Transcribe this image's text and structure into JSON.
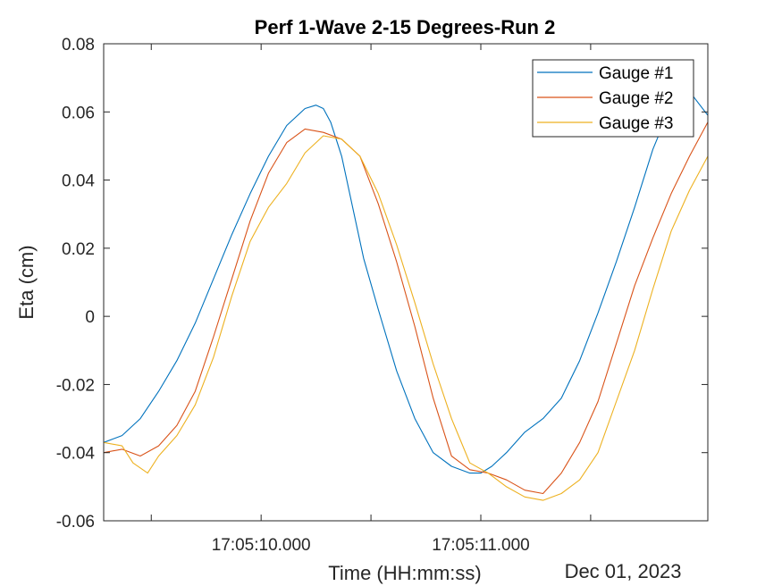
{
  "chart_data": {
    "type": "line",
    "title": "Perf 1-Wave 2-15 Degrees-Run 2",
    "xlabel": "Time (HH:mm:ss)",
    "ylabel": "Eta (cm)",
    "date_label": "Dec 01, 2023",
    "x_unit": "seconds after 17:05:09",
    "xlim": [
      0.3,
      1.95
    ],
    "ylim": [
      -0.06,
      0.08
    ],
    "x_ticks": [
      0.43,
      0.73,
      1.03,
      1.33,
      1.63
    ],
    "x_tick_labels": [
      "",
      "17:05:10.000",
      "",
      "17:05:11.000",
      ""
    ],
    "y_ticks": [
      -0.06,
      -0.04,
      -0.02,
      0,
      0.02,
      0.04,
      0.06,
      0.08
    ],
    "y_tick_labels": [
      "-0.06",
      "-0.04",
      "-0.02",
      "0",
      "0.02",
      "0.04",
      "0.06",
      "0.08"
    ],
    "grid": false,
    "legend_position": "top-right",
    "series": [
      {
        "name": "Gauge #1",
        "color": "#0072BD",
        "x": [
          0.3,
          0.35,
          0.4,
          0.45,
          0.5,
          0.55,
          0.6,
          0.65,
          0.7,
          0.75,
          0.8,
          0.85,
          0.88,
          0.9,
          0.92,
          0.95,
          0.98,
          1.01,
          1.05,
          1.1,
          1.15,
          1.2,
          1.25,
          1.3,
          1.33,
          1.36,
          1.4,
          1.45,
          1.5,
          1.55,
          1.6,
          1.65,
          1.7,
          1.75,
          1.8,
          1.85,
          1.9,
          1.95
        ],
        "y": [
          -0.037,
          -0.035,
          -0.03,
          -0.022,
          -0.013,
          -0.002,
          0.011,
          0.024,
          0.036,
          0.047,
          0.056,
          0.061,
          0.062,
          0.061,
          0.057,
          0.047,
          0.032,
          0.017,
          0.002,
          -0.016,
          -0.03,
          -0.04,
          -0.044,
          -0.046,
          -0.046,
          -0.044,
          -0.04,
          -0.034,
          -0.03,
          -0.024,
          -0.013,
          0.001,
          0.016,
          0.032,
          0.049,
          0.062,
          0.066,
          0.059
        ]
      },
      {
        "name": "Gauge #2",
        "color": "#D95319",
        "x": [
          0.3,
          0.35,
          0.4,
          0.45,
          0.5,
          0.55,
          0.6,
          0.65,
          0.7,
          0.75,
          0.8,
          0.85,
          0.9,
          0.95,
          1.0,
          1.05,
          1.1,
          1.15,
          1.2,
          1.25,
          1.3,
          1.35,
          1.4,
          1.45,
          1.5,
          1.55,
          1.6,
          1.65,
          1.7,
          1.75,
          1.8,
          1.85,
          1.9,
          1.95
        ],
        "y": [
          -0.04,
          -0.039,
          -0.041,
          -0.038,
          -0.032,
          -0.022,
          -0.006,
          0.011,
          0.028,
          0.042,
          0.051,
          0.055,
          0.054,
          0.052,
          0.047,
          0.033,
          0.016,
          -0.003,
          -0.024,
          -0.041,
          -0.045,
          -0.046,
          -0.048,
          -0.051,
          -0.052,
          -0.046,
          -0.037,
          -0.025,
          -0.008,
          0.009,
          0.023,
          0.036,
          0.047,
          0.057
        ]
      },
      {
        "name": "Gauge #3",
        "color": "#EDB120",
        "x": [
          0.3,
          0.35,
          0.38,
          0.42,
          0.45,
          0.5,
          0.55,
          0.6,
          0.65,
          0.7,
          0.75,
          0.8,
          0.85,
          0.9,
          0.95,
          1.0,
          1.05,
          1.1,
          1.15,
          1.2,
          1.25,
          1.3,
          1.35,
          1.4,
          1.45,
          1.5,
          1.55,
          1.6,
          1.65,
          1.7,
          1.75,
          1.8,
          1.85,
          1.9,
          1.95
        ],
        "y": [
          -0.037,
          -0.038,
          -0.043,
          -0.046,
          -0.041,
          -0.035,
          -0.026,
          -0.012,
          0.006,
          0.022,
          0.032,
          0.039,
          0.048,
          0.053,
          0.052,
          0.047,
          0.036,
          0.021,
          0.004,
          -0.014,
          -0.03,
          -0.043,
          -0.046,
          -0.05,
          -0.053,
          -0.054,
          -0.052,
          -0.048,
          -0.04,
          -0.025,
          -0.01,
          0.008,
          0.025,
          0.037,
          0.047
        ]
      }
    ]
  }
}
